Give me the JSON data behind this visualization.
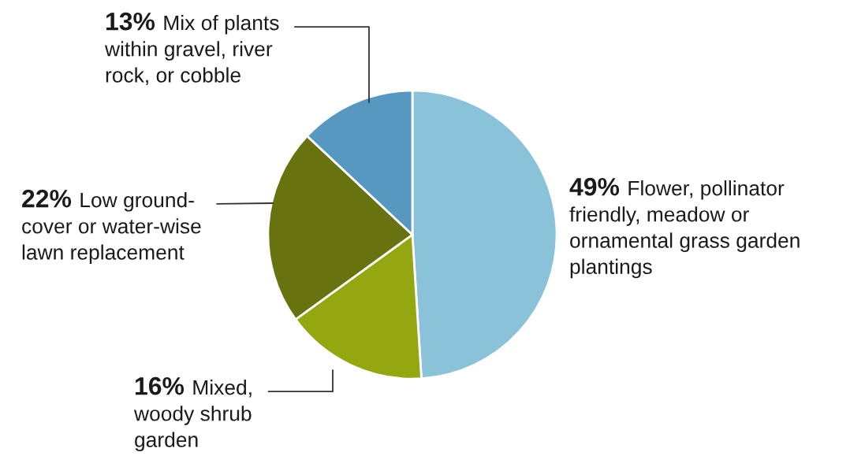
{
  "chart_data": {
    "type": "pie",
    "categories": [
      "Flower, pollinator friendly, meadow or ornamental grass garden plantings",
      "Mixed, woody shrub garden",
      "Low ground-cover or water-wise lawn replacement",
      "Mix of plants within gravel, river rock, or cobble"
    ],
    "values": [
      49,
      16,
      22,
      13
    ],
    "value_labels": [
      "49%",
      "16%",
      "22%",
      "13%"
    ],
    "colors": [
      "#8ac2da",
      "#94a710",
      "#68720f",
      "#5698c0"
    ],
    "legend": false
  }
}
